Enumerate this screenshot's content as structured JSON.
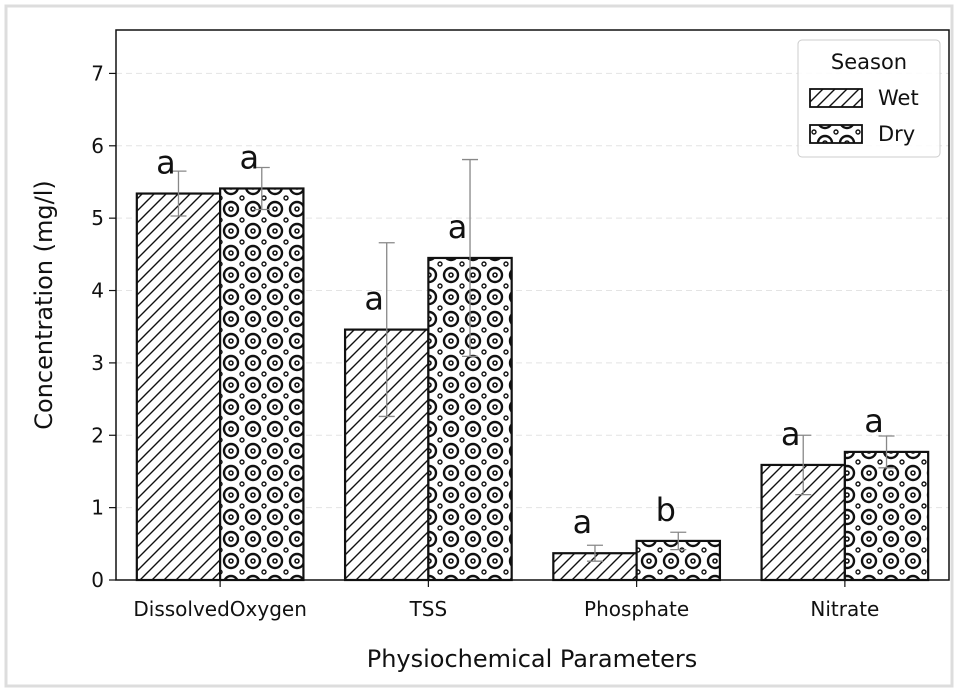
{
  "chart_data": {
    "type": "bar",
    "xlabel": "Physiochemical Parameters",
    "ylabel": "Concentration (mg/l)",
    "categories": [
      "DissolvedOxygen",
      "TSS",
      "Phosphate",
      "Nitrate"
    ],
    "series": [
      {
        "name": "Wet",
        "color": "#ffffff",
        "hatch": "///",
        "values": [
          5.34,
          3.46,
          0.37,
          1.59
        ],
        "errors": [
          0.31,
          1.2,
          0.11,
          0.41
        ],
        "letters": [
          "a",
          "a",
          "a",
          "a"
        ]
      },
      {
        "name": "Dry",
        "color": "#ffffff",
        "hatch": "o",
        "values": [
          5.41,
          4.45,
          0.54,
          1.77
        ],
        "errors": [
          0.29,
          1.36,
          0.12,
          0.22
        ],
        "letters": [
          "a",
          "a",
          "b",
          "a"
        ]
      }
    ],
    "legend_title": "Season",
    "legend": "upper right",
    "ylim": [
      0,
      7.6
    ],
    "yticks": [
      0,
      1,
      2,
      3,
      4,
      5,
      6,
      7
    ],
    "grid": true
  }
}
